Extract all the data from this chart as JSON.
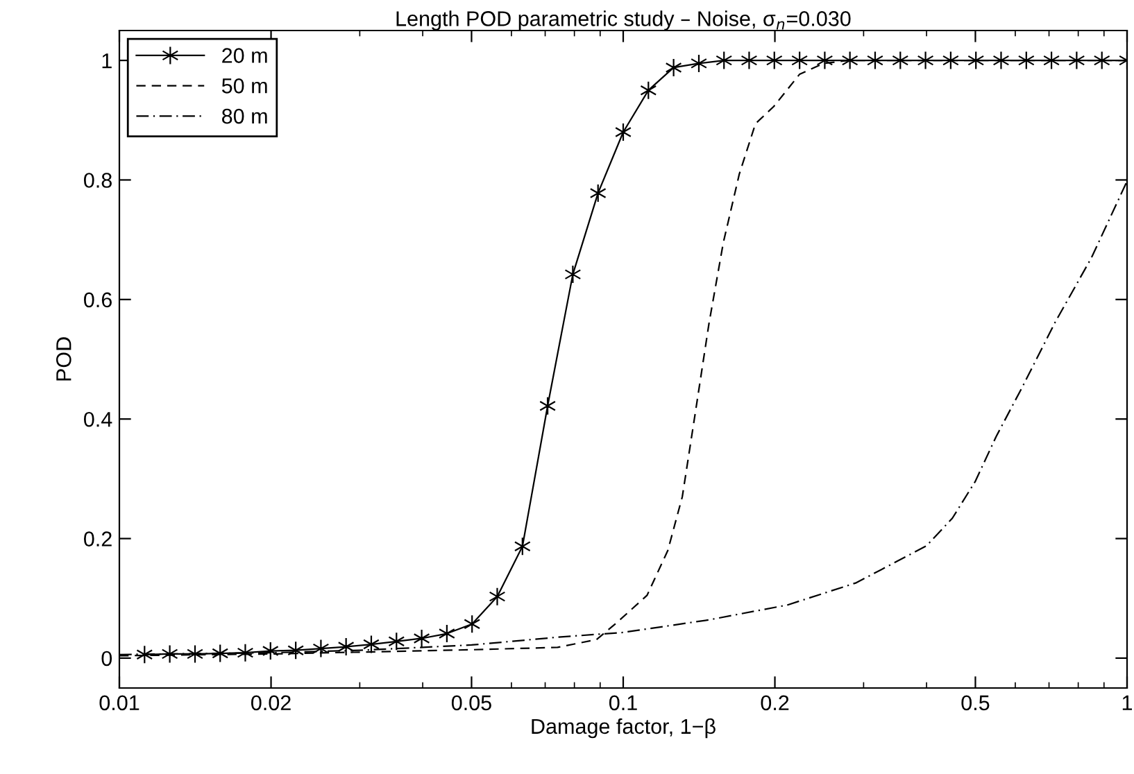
{
  "chart_data": {
    "type": "line",
    "title": "Length POD parametric study – Noise, σ$_{n}$=0.030",
    "xlabel": "Damage factor, 1−β",
    "ylabel": "POD",
    "log": "x",
    "xlim": [
      0.01,
      1
    ],
    "xticks": [
      0.01,
      0.02,
      0.05,
      0.1,
      0.2,
      0.5,
      1
    ],
    "ylim": [
      -0.05,
      1.05
    ],
    "yticks": [
      0,
      0.2,
      0.4,
      0.6,
      0.8,
      1
    ],
    "grid": false,
    "legend": "top left",
    "series": [
      {
        "name": "20 m",
        "color": "#000000",
        "marker": "cross",
        "line_style": "solid",
        "x": [
          0.01122,
          0.01259,
          0.01413,
          0.01585,
          0.01778,
          0.01995,
          0.02239,
          0.02512,
          0.02818,
          0.03162,
          0.03548,
          0.03981,
          0.04467,
          0.05012,
          0.05623,
          0.0631,
          0.07079,
          0.07943,
          0.08913,
          0.1,
          0.1122,
          0.1259,
          0.1413,
          0.1585,
          0.1778,
          0.1995,
          0.2239,
          0.2512,
          0.2818,
          0.3162,
          0.3548,
          0.3981,
          0.4467,
          0.5012,
          0.5623,
          0.631,
          0.7079,
          0.7943,
          0.8913,
          1
        ],
        "values": [
          0.006,
          0.007,
          0.007,
          0.008,
          0.009,
          0.012,
          0.013,
          0.016,
          0.019,
          0.023,
          0.028,
          0.033,
          0.041,
          0.057,
          0.103,
          0.187,
          0.422,
          0.642,
          0.778,
          0.88,
          0.95,
          0.988,
          0.995,
          1,
          1,
          1,
          1,
          1,
          1,
          1,
          1,
          1,
          1,
          1,
          1,
          1,
          1,
          1,
          1,
          1
        ]
      },
      {
        "name": "50 m",
        "color": "#000000",
        "marker": "none",
        "line_style": "dashed",
        "x": [
          0.01,
          0.02,
          0.03,
          0.05,
          0.0741,
          0.0885,
          0.0973,
          0.1115,
          0.1226,
          0.131,
          0.139,
          0.148,
          0.158,
          0.17,
          0.183,
          0.199,
          0.224,
          0.25,
          0.28,
          1
        ],
        "values": [
          0.004,
          0.007,
          0.01,
          0.014,
          0.018,
          0.031,
          0.06,
          0.105,
          0.18,
          0.27,
          0.41,
          0.56,
          0.695,
          0.81,
          0.894,
          0.923,
          0.977,
          0.995,
          1,
          1
        ]
      },
      {
        "name": "80 m",
        "color": "#000000",
        "marker": "none",
        "line_style": "dashdot",
        "x": [
          0.01,
          0.02,
          0.03,
          0.05,
          0.0741,
          0.1,
          0.148,
          0.212,
          0.29,
          0.4,
          0.45,
          0.5,
          0.55,
          0.62,
          0.72,
          0.85,
          1
        ],
        "values": [
          0.006,
          0.009,
          0.013,
          0.022,
          0.035,
          0.043,
          0.064,
          0.089,
          0.126,
          0.188,
          0.234,
          0.296,
          0.371,
          0.454,
          0.562,
          0.67,
          0.798
        ]
      }
    ]
  }
}
